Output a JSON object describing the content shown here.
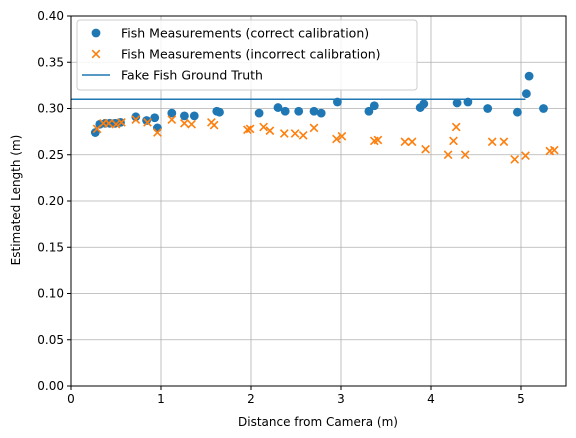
{
  "chart_data": {
    "type": "scatter",
    "xlabel": "Distance from Camera (m)",
    "ylabel": "Estimated Length (m)",
    "xlim": [
      0,
      5.5
    ],
    "ylim": [
      0,
      0.4
    ],
    "xticks": [
      "0",
      "1",
      "2",
      "3",
      "4",
      "5"
    ],
    "yticks": [
      "0.00",
      "0.05",
      "0.10",
      "0.15",
      "0.20",
      "0.25",
      "0.30",
      "0.35",
      "0.40"
    ],
    "grid": true,
    "legend": "upper-left",
    "series": [
      {
        "name": "Fish Measurements (correct calibration)",
        "marker": "circle",
        "color": "#1f77b4",
        "points": [
          [
            0.27,
            0.274
          ],
          [
            0.32,
            0.283
          ],
          [
            0.38,
            0.284
          ],
          [
            0.43,
            0.284
          ],
          [
            0.49,
            0.284
          ],
          [
            0.55,
            0.285
          ],
          [
            0.72,
            0.291
          ],
          [
            0.84,
            0.287
          ],
          [
            0.93,
            0.29
          ],
          [
            0.96,
            0.279
          ],
          [
            1.12,
            0.295
          ],
          [
            1.26,
            0.292
          ],
          [
            1.37,
            0.292
          ],
          [
            1.62,
            0.297
          ],
          [
            1.65,
            0.296
          ],
          [
            2.09,
            0.295
          ],
          [
            2.3,
            0.301
          ],
          [
            2.38,
            0.297
          ],
          [
            2.53,
            0.297
          ],
          [
            2.7,
            0.297
          ],
          [
            2.78,
            0.295
          ],
          [
            2.96,
            0.307
          ],
          [
            3.31,
            0.297
          ],
          [
            3.37,
            0.303
          ],
          [
            3.88,
            0.301
          ],
          [
            3.92,
            0.305
          ],
          [
            4.29,
            0.306
          ],
          [
            4.41,
            0.307
          ],
          [
            4.63,
            0.3
          ],
          [
            4.96,
            0.296
          ],
          [
            5.06,
            0.316
          ],
          [
            5.09,
            0.335
          ],
          [
            5.25,
            0.3
          ]
        ]
      },
      {
        "name": "Fish Measurements (incorrect calibration)",
        "marker": "x",
        "color": "#ff7f0e",
        "points": [
          [
            0.29,
            0.278
          ],
          [
            0.36,
            0.284
          ],
          [
            0.42,
            0.284
          ],
          [
            0.5,
            0.283
          ],
          [
            0.56,
            0.285
          ],
          [
            0.72,
            0.288
          ],
          [
            0.85,
            0.285
          ],
          [
            0.96,
            0.274
          ],
          [
            1.12,
            0.288
          ],
          [
            1.26,
            0.284
          ],
          [
            1.34,
            0.283
          ],
          [
            1.56,
            0.285
          ],
          [
            1.59,
            0.282
          ],
          [
            1.96,
            0.277
          ],
          [
            1.99,
            0.278
          ],
          [
            2.14,
            0.28
          ],
          [
            2.21,
            0.276
          ],
          [
            2.37,
            0.273
          ],
          [
            2.49,
            0.273
          ],
          [
            2.58,
            0.271
          ],
          [
            2.7,
            0.279
          ],
          [
            2.95,
            0.267
          ],
          [
            3.01,
            0.27
          ],
          [
            3.37,
            0.265
          ],
          [
            3.41,
            0.266
          ],
          [
            3.71,
            0.264
          ],
          [
            3.79,
            0.264
          ],
          [
            3.94,
            0.256
          ],
          [
            4.19,
            0.25
          ],
          [
            4.25,
            0.265
          ],
          [
            4.28,
            0.28
          ],
          [
            4.38,
            0.25
          ],
          [
            4.68,
            0.264
          ],
          [
            4.81,
            0.264
          ],
          [
            4.93,
            0.245
          ],
          [
            5.05,
            0.249
          ],
          [
            5.32,
            0.254
          ],
          [
            5.37,
            0.255
          ]
        ]
      },
      {
        "name": "Fake Fish Ground Truth",
        "marker": "line",
        "color": "#1f77b4",
        "x": [
          0,
          5.05
        ],
        "y": [
          0.31,
          0.31
        ]
      }
    ]
  }
}
